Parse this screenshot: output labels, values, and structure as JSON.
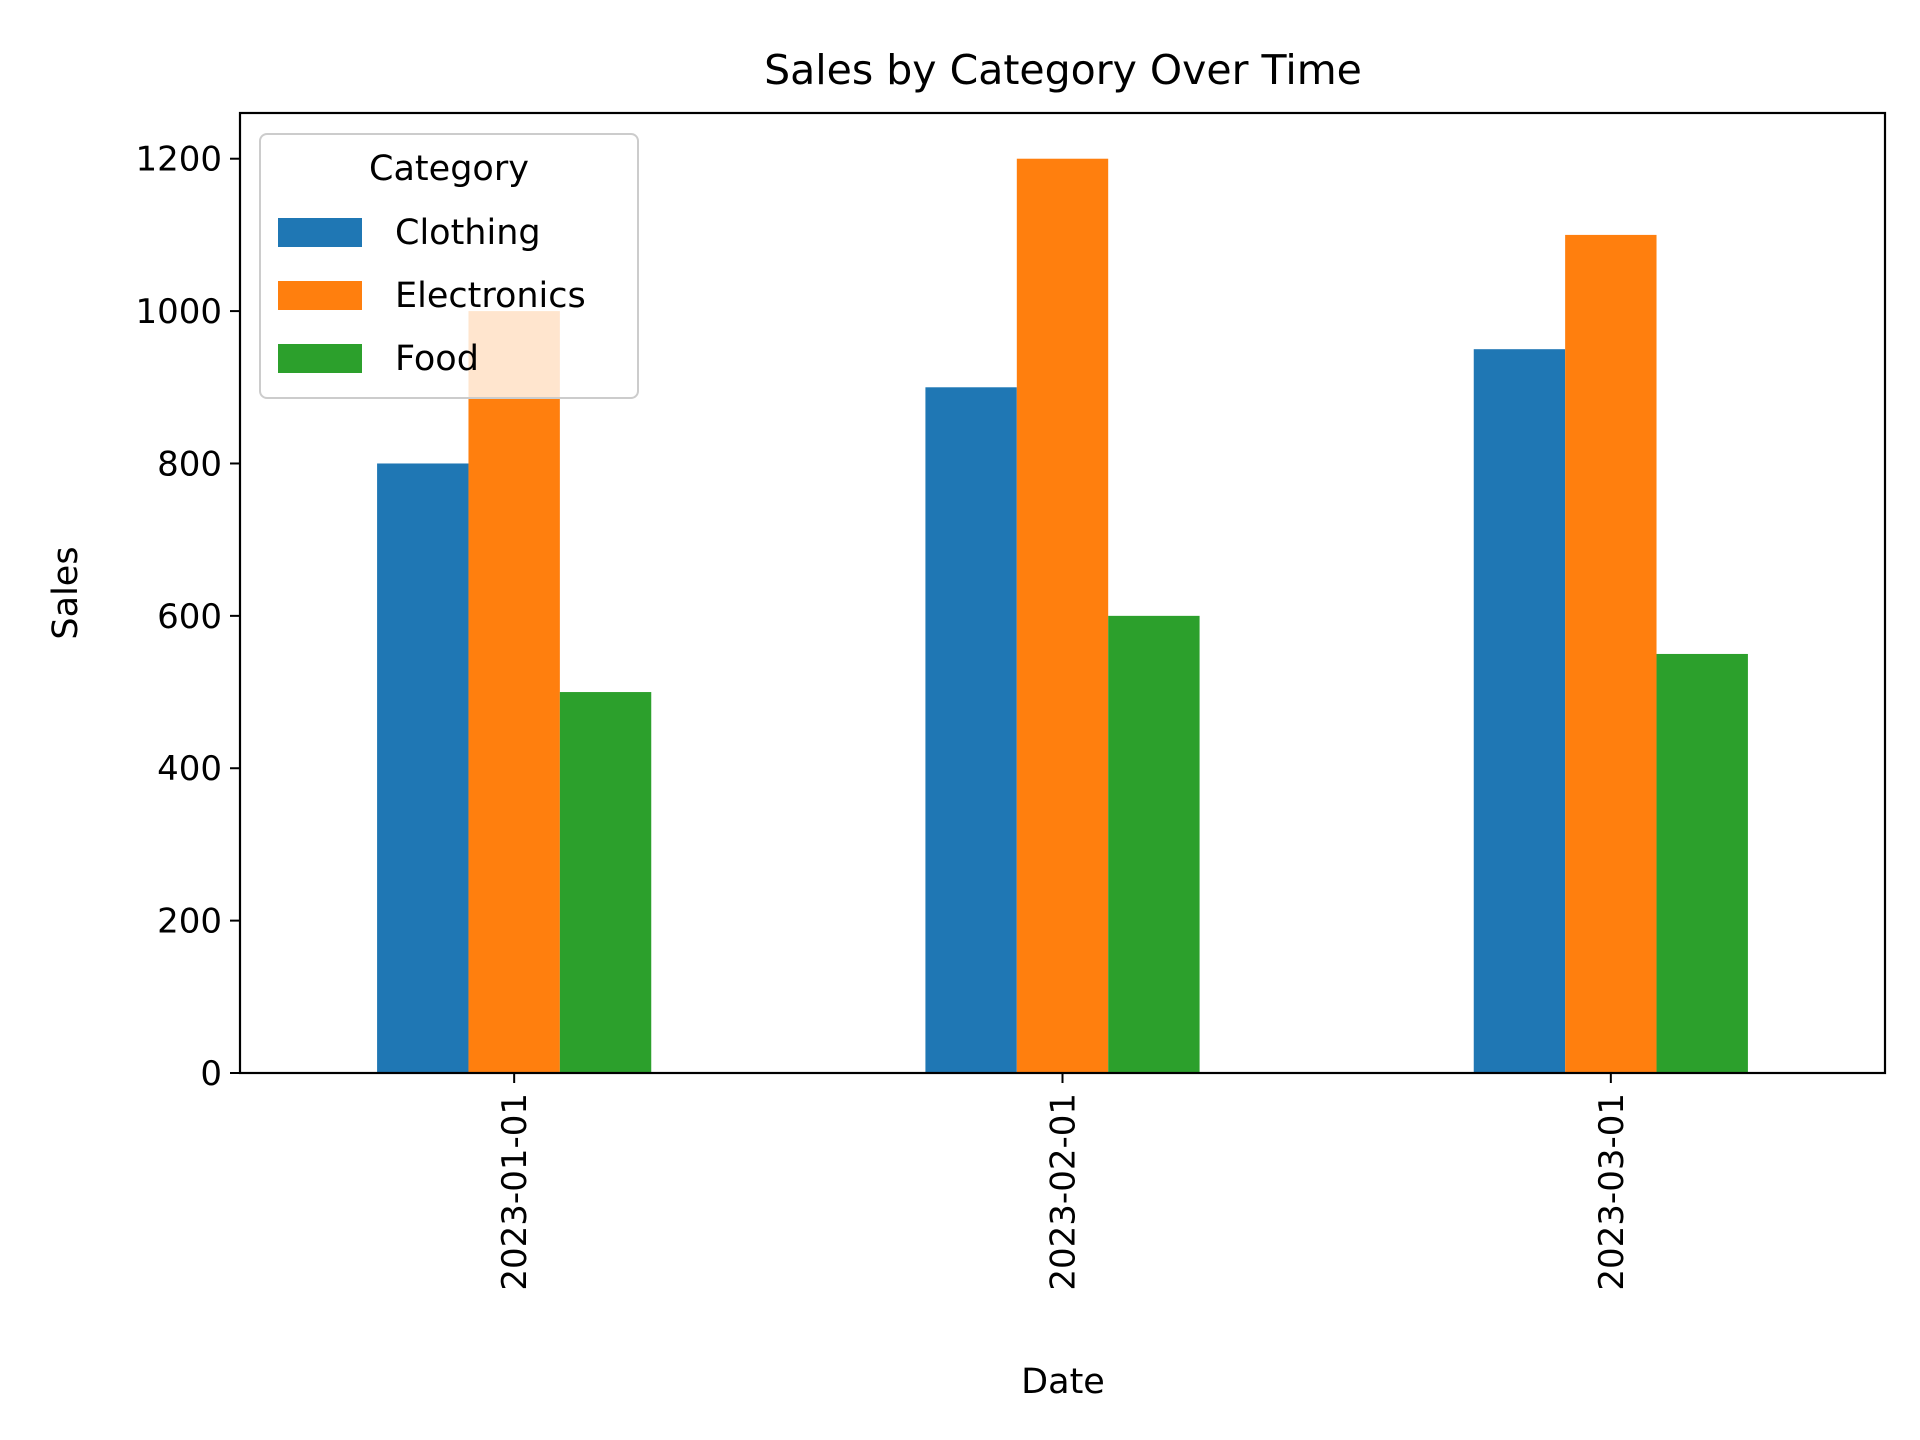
{
  "chart_data": {
    "type": "bar",
    "title": "Sales by Category Over Time",
    "xlabel": "Date",
    "ylabel": "Sales",
    "categories": [
      "2023-01-01",
      "2023-02-01",
      "2023-03-01"
    ],
    "series": [
      {
        "name": "Clothing",
        "color": "#1f77b4",
        "values": [
          800,
          900,
          950
        ]
      },
      {
        "name": "Electronics",
        "color": "#ff7f0e",
        "values": [
          1000,
          1200,
          1100
        ]
      },
      {
        "name": "Food",
        "color": "#2ca02c",
        "values": [
          500,
          600,
          550
        ]
      }
    ],
    "ylim": [
      0,
      1260
    ],
    "yticks": [
      0,
      200,
      400,
      600,
      800,
      1000,
      1200
    ],
    "grid": false,
    "legend": {
      "title": "Category",
      "placement": "top-left"
    }
  }
}
